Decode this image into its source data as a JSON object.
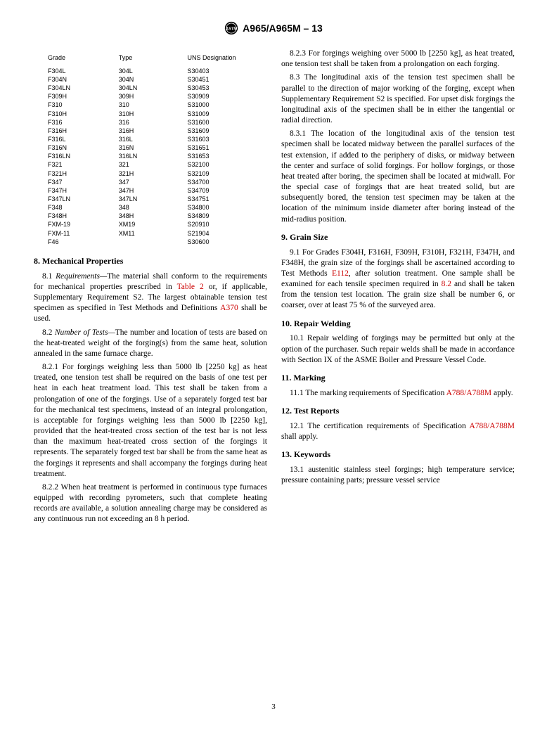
{
  "header": {
    "standard": "A965/A965M – 13"
  },
  "table": {
    "headers": {
      "grade": "Grade",
      "type": "Type",
      "uns": "UNS Designation"
    },
    "rows": [
      {
        "grade": "F304L",
        "type": "304L",
        "uns": "S30403"
      },
      {
        "grade": "F304N",
        "type": "304N",
        "uns": "S30451"
      },
      {
        "grade": "F304LN",
        "type": "304LN",
        "uns": "S30453"
      },
      {
        "grade": "F309H",
        "type": "309H",
        "uns": "S30909"
      },
      {
        "grade": "F310",
        "type": "310",
        "uns": "S31000"
      },
      {
        "grade": "F310H",
        "type": "310H",
        "uns": "S31009"
      },
      {
        "grade": "F316",
        "type": "316",
        "uns": "S31600"
      },
      {
        "grade": "F316H",
        "type": "316H",
        "uns": "S31609"
      },
      {
        "grade": "F316L",
        "type": "316L",
        "uns": "S31603"
      },
      {
        "grade": "F316N",
        "type": "316N",
        "uns": "S31651"
      },
      {
        "grade": "F316LN",
        "type": "316LN",
        "uns": "S31653"
      },
      {
        "grade": "F321",
        "type": "321",
        "uns": "S32100"
      },
      {
        "grade": "F321H",
        "type": "321H",
        "uns": "S32109"
      },
      {
        "grade": "F347",
        "type": "347",
        "uns": "S34700"
      },
      {
        "grade": "F347H",
        "type": "347H",
        "uns": "S34709"
      },
      {
        "grade": "F347LN",
        "type": "347LN",
        "uns": "S34751"
      },
      {
        "grade": "F348",
        "type": "348",
        "uns": "S34800"
      },
      {
        "grade": "F348H",
        "type": "348H",
        "uns": "S34809"
      },
      {
        "grade": "FXM-19",
        "type": "XM19",
        "uns": "S20910"
      },
      {
        "grade": "FXM-11",
        "type": "XM11",
        "uns": "S21904"
      },
      {
        "grade": "F46",
        "type": "",
        "uns": "S30600"
      }
    ]
  },
  "s8": {
    "heading": "8.  Mechanical Properties",
    "p1a": "8.1 ",
    "p1b": "Requirements—",
    "p1c": "The material shall conform to the requirements for mechanical properties prescribed in ",
    "p1d": "Table 2",
    "p1e": " or, if applicable, Supplementary Requirement S2. The largest obtainable tension test specimen as specified in Test Methods and Definitions ",
    "p1f": "A370",
    "p1g": " shall be used.",
    "p2a": "8.2 ",
    "p2b": "Number of Tests—",
    "p2c": "The number and location of tests are based on the heat-treated weight of the forging(s) from the same heat, solution annealed in the same furnace charge.",
    "p21": "8.2.1 For forgings weighing less than 5000 lb [2250 kg] as heat treated, one tension test shall be required on the basis of one test per heat in each heat treatment load. This test shall be taken from a prolongation of one of the forgings. Use of a separately forged test bar for the mechanical test specimens, instead of an integral prolongation, is acceptable for forgings weighing less than 5000 lb [2250 kg], provided that the heat-treated cross section of the test bar is not less than the maximum heat-treated cross section of the forgings it represents. The separately forged test bar shall be from the same heat as the forgings it represents and shall accompany the forgings during heat treatment.",
    "p22": "8.2.2 When heat treatment is performed in continuous type furnaces equipped with recording pyrometers, such that complete heating records are available, a solution annealing charge may be considered as any continuous run not exceeding an 8 h period.",
    "p23": "8.2.3 For forgings weighing over 5000 lb [2250 kg], as heat treated, one tension test shall be taken from a prolongation on each forging.",
    "p3": "8.3 The longitudinal axis of the tension test specimen shall be parallel to the direction of major working of the forging, except when Supplementary Requirement S2 is specified. For upset disk forgings the longitudinal axis of the specimen shall be in either the tangential or radial direction.",
    "p31": "8.3.1 The location of the longitudinal axis of the tension test specimen shall be located midway between the parallel surfaces of the test extension, if added to the periphery of disks, or midway between the center and surface of solid forgings. For hollow forgings, or those heat treated after boring, the specimen shall be located at midwall. For the special case of forgings that are heat treated solid, but are subsequently bored, the tension test specimen may be taken at the location of the minimum inside diameter after boring instead of the mid-radius position."
  },
  "s9": {
    "heading": "9.  Grain Size",
    "p1a": "9.1 For Grades F304H, F316H, F309H, F310H, F321H, F347H, and F348H, the grain size of the forgings shall be ascertained according to Test Methods ",
    "p1b": "E112",
    "p1c": ", after solution treatment. One sample shall be examined for each tensile specimen required in ",
    "p1d": "8.2",
    "p1e": " and shall be taken from the tension test location. The grain size shall be number 6, or coarser, over at least 75 % of the surveyed area."
  },
  "s10": {
    "heading": "10.  Repair Welding",
    "p1": "10.1 Repair welding of forgings may be permitted but only at the option of the purchaser. Such repair welds shall be made in accordance with Section IX of the ASME Boiler and Pressure Vessel Code."
  },
  "s11": {
    "heading": "11.  Marking",
    "p1a": "11.1 The marking requirements of Specification ",
    "p1b": "A788/A788M",
    "p1c": " apply."
  },
  "s12": {
    "heading": "12.  Test Reports",
    "p1a": "12.1 The certification requirements of Specification ",
    "p1b": "A788/A788M",
    "p1c": " shall apply."
  },
  "s13": {
    "heading": "13.  Keywords",
    "p1": "13.1 austenitic stainless steel forgings; high temperature service; pressure containing parts; pressure vessel service"
  },
  "pageNumber": "3"
}
